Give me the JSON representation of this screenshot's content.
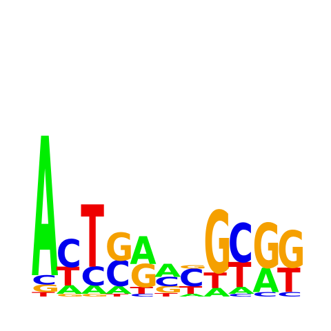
{
  "colors": {
    "A": "#00ee00",
    "C": "#0000ee",
    "G": "#f5a000",
    "T": "#ee0000"
  },
  "positions": [
    [
      {
        "letter": "T",
        "height": 0.05
      },
      {
        "letter": "G",
        "height": 0.08
      },
      {
        "letter": "C",
        "height": 0.1
      },
      {
        "letter": "A",
        "height": 1.5
      }
    ],
    [
      {
        "letter": "G",
        "height": 0.03
      },
      {
        "letter": "A",
        "height": 0.09
      },
      {
        "letter": "T",
        "height": 0.2
      },
      {
        "letter": "C",
        "height": 0.3
      }
    ],
    [
      {
        "letter": "G",
        "height": 0.03
      },
      {
        "letter": "A",
        "height": 0.09
      },
      {
        "letter": "C",
        "height": 0.2
      },
      {
        "letter": "T",
        "height": 0.67
      }
    ],
    [
      {
        "letter": "T",
        "height": 0.03
      },
      {
        "letter": "A",
        "height": 0.08
      },
      {
        "letter": "C",
        "height": 0.28
      },
      {
        "letter": "G",
        "height": 0.3
      }
    ],
    [
      {
        "letter": "C",
        "height": 0.03
      },
      {
        "letter": "T",
        "height": 0.07
      },
      {
        "letter": "G",
        "height": 0.25
      },
      {
        "letter": "A",
        "height": 0.3
      }
    ],
    [
      {
        "letter": "T",
        "height": 0.04
      },
      {
        "letter": "G",
        "height": 0.07
      },
      {
        "letter": "C",
        "height": 0.1
      },
      {
        "letter": "A",
        "height": 0.14
      }
    ],
    [
      {
        "letter": "A",
        "height": 0.03
      },
      {
        "letter": "T",
        "height": 0.08
      },
      {
        "letter": "C",
        "height": 0.19
      },
      {
        "letter": "G",
        "height": 0.04
      }
    ],
    [
      {
        "letter": "A",
        "height": 0.09
      },
      {
        "letter": "T",
        "height": 0.17
      },
      {
        "letter": "G",
        "height": 0.67
      }
    ],
    [
      {
        "letter": "C",
        "height": 0.03
      },
      {
        "letter": "A",
        "height": 0.07
      },
      {
        "letter": "T",
        "height": 0.27
      },
      {
        "letter": "C",
        "height": 0.42
      }
    ],
    [
      {
        "letter": "C",
        "height": 0.05
      },
      {
        "letter": "A",
        "height": 0.26
      },
      {
        "letter": "G",
        "height": 0.48
      }
    ],
    [
      {
        "letter": "C",
        "height": 0.05
      },
      {
        "letter": "T",
        "height": 0.26
      },
      {
        "letter": "G",
        "height": 0.4
      }
    ]
  ]
}
